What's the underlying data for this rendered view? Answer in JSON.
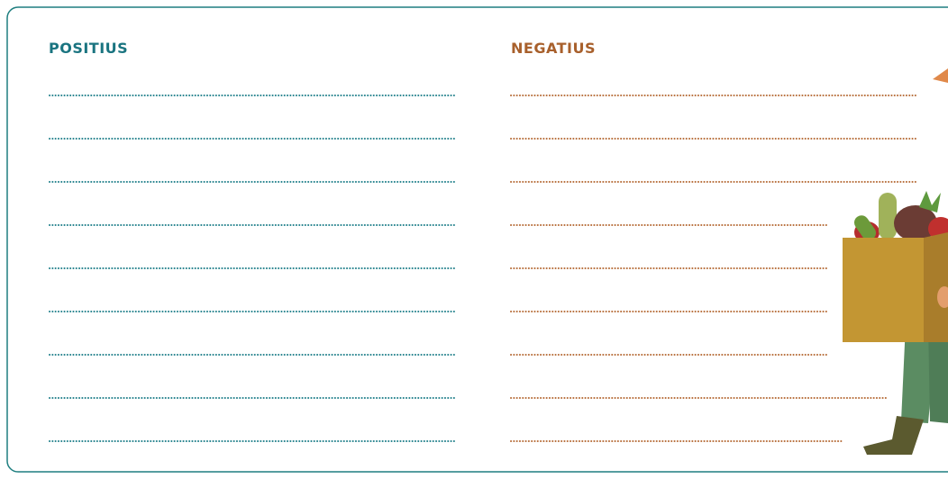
{
  "columns": [
    {
      "heading": "POSITIUS"
    },
    {
      "heading": "NEGATIUS"
    }
  ]
}
